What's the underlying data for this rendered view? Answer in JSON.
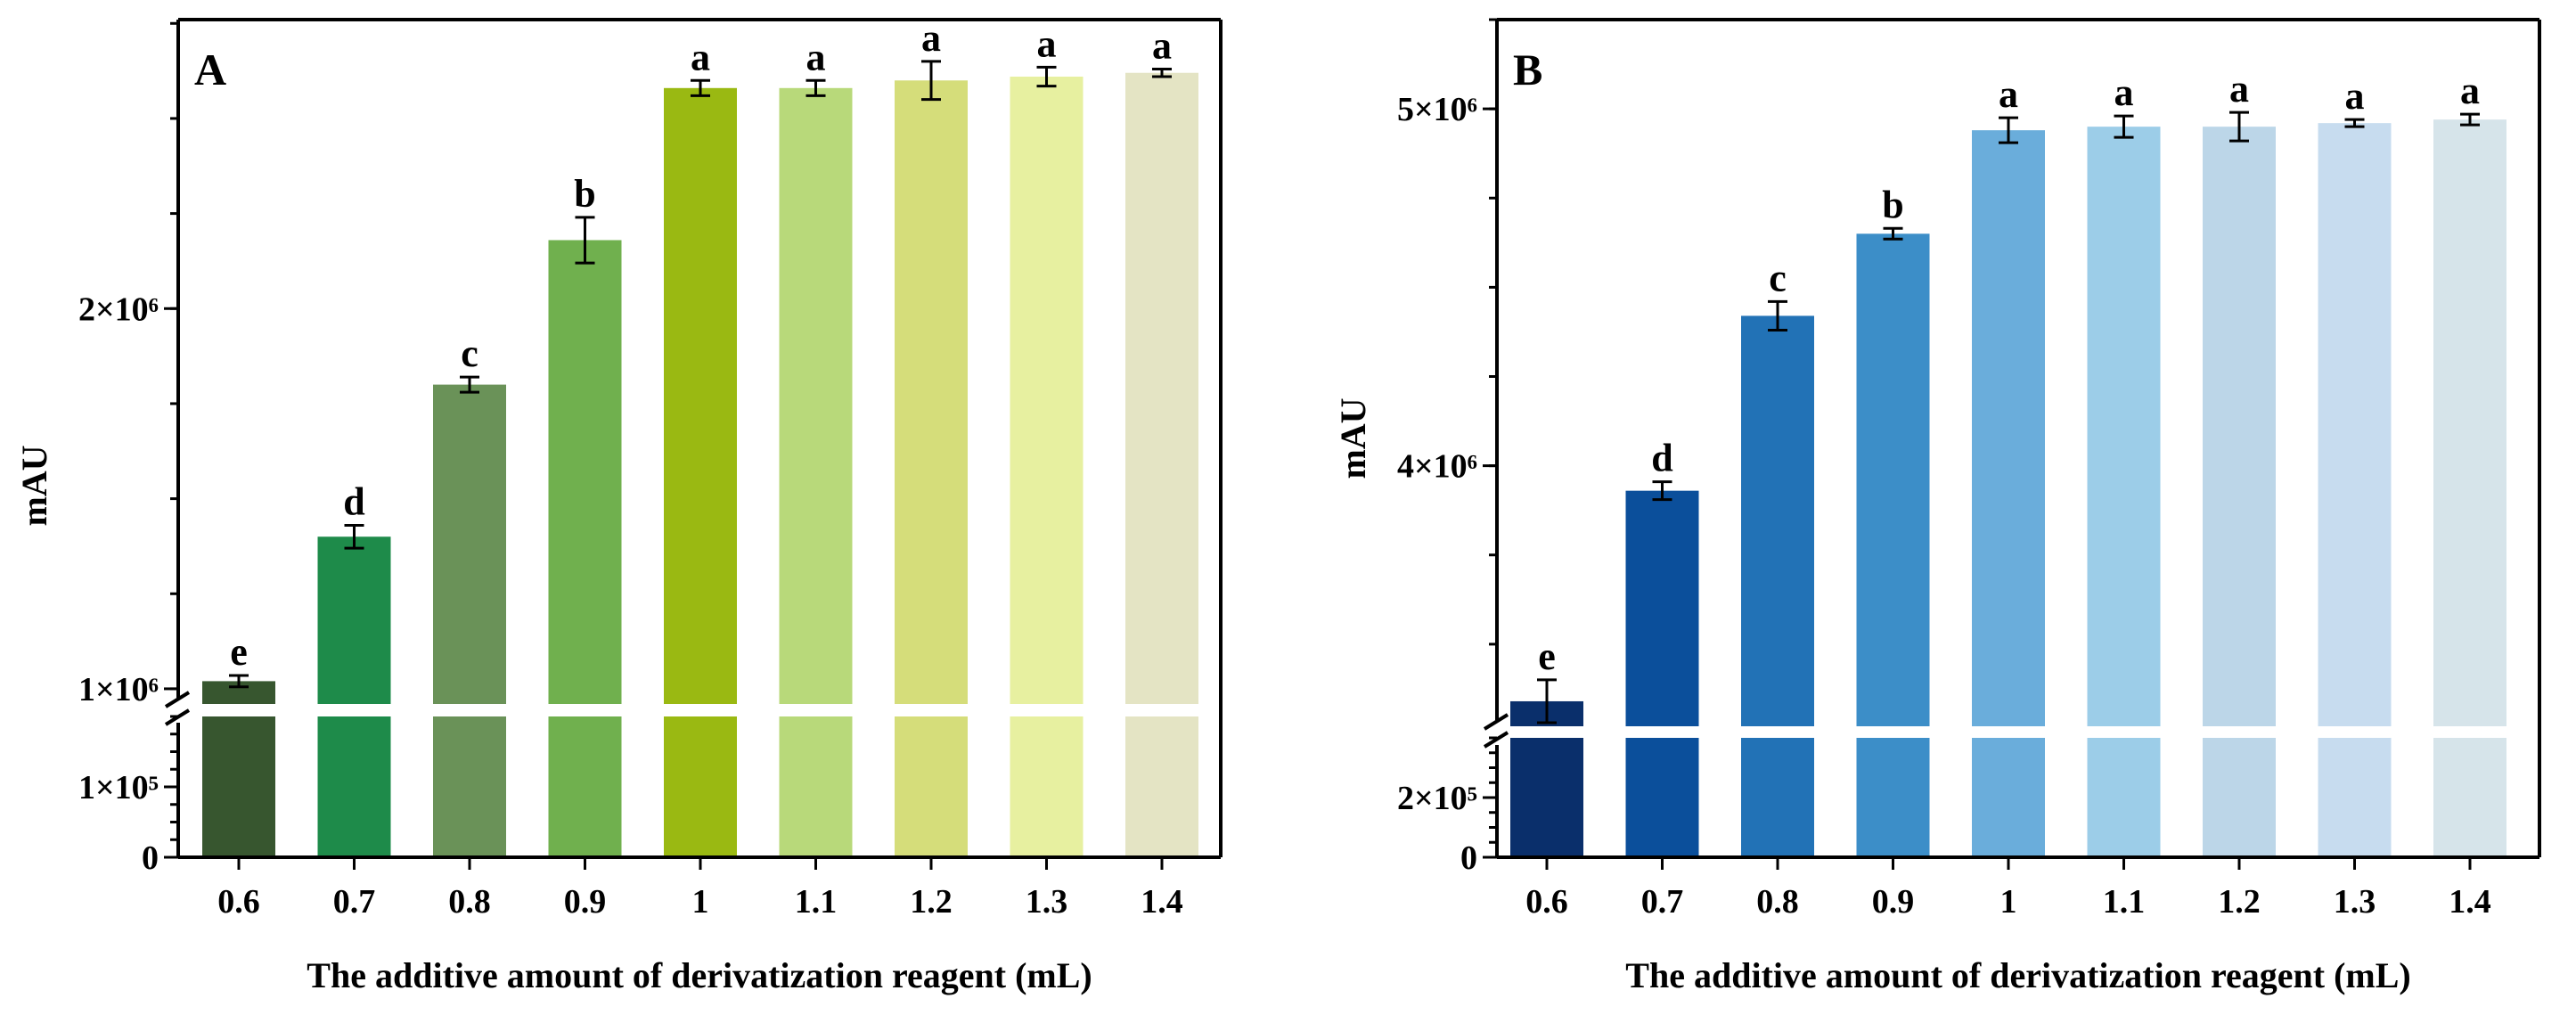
{
  "chart_data": [
    {
      "type": "bar",
      "panel_label": "A",
      "xlabel": "The additive amount of derivatization reagent (mL)",
      "ylabel": "mAU",
      "categories": [
        "0.6",
        "0.7",
        "0.8",
        "0.9",
        "1",
        "1.1",
        "1.2",
        "1.3",
        "1.4"
      ],
      "values": [
        1020000,
        1400000,
        1800000,
        2180000,
        2580000,
        2580000,
        2600000,
        2610000,
        2620000
      ],
      "errors": [
        15000,
        30000,
        20000,
        60000,
        20000,
        20000,
        50000,
        25000,
        10000
      ],
      "significance": [
        "e",
        "d",
        "c",
        "b",
        "a",
        "a",
        "a",
        "a",
        "a"
      ],
      "colors": [
        "#37562f",
        "#1e8b4a",
        "#6a9258",
        "#70b04e",
        "#9ab912",
        "#b8d97a",
        "#d5dd7a",
        "#e7f0a0",
        "#e4e4c4"
      ],
      "y_axis_break": true,
      "y_lower_range": [
        0,
        200000
      ],
      "y_upper_range": [
        960000,
        2760000
      ],
      "y_ticks_lower": [
        {
          "value": 0,
          "label": "0"
        },
        {
          "value": 100000,
          "label": "1×10⁵"
        }
      ],
      "y_ticks_upper": [
        {
          "value": 1000000,
          "label": "1×10⁶"
        },
        {
          "value": 2000000,
          "label": "2×10⁶"
        }
      ]
    },
    {
      "type": "bar",
      "panel_label": "B",
      "xlabel": "The additive amount of derivatization reagent (mL)",
      "ylabel": "mAU",
      "categories": [
        "0.6",
        "0.7",
        "0.8",
        "0.9",
        "1",
        "1.1",
        "1.2",
        "1.3",
        "1.4"
      ],
      "values": [
        3340000,
        3930000,
        4420000,
        4650000,
        4940000,
        4950000,
        4950000,
        4960000,
        4970000
      ],
      "errors": [
        60000,
        25000,
        40000,
        15000,
        35000,
        30000,
        40000,
        10000,
        15000
      ],
      "significance": [
        "e",
        "d",
        "c",
        "b",
        "a",
        "a",
        "a",
        "a",
        "a"
      ],
      "colors": [
        "#0a2f6b",
        "#0b4f9b",
        "#2272b6",
        "#3c8ec8",
        "#6aaddb",
        "#9ccde8",
        "#bcd6e8",
        "#c7dcef",
        "#d6e4ea"
      ],
      "y_axis_break": true,
      "y_lower_range": [
        0,
        400000
      ],
      "y_upper_range": [
        3270000,
        5250000
      ],
      "y_ticks_lower": [
        {
          "value": 0,
          "label": "0"
        },
        {
          "value": 200000,
          "label": "2×10⁵"
        }
      ],
      "y_ticks_upper": [
        {
          "value": 4000000,
          "label": "4×10⁶"
        },
        {
          "value": 5000000,
          "label": "5×10⁶"
        }
      ]
    }
  ]
}
